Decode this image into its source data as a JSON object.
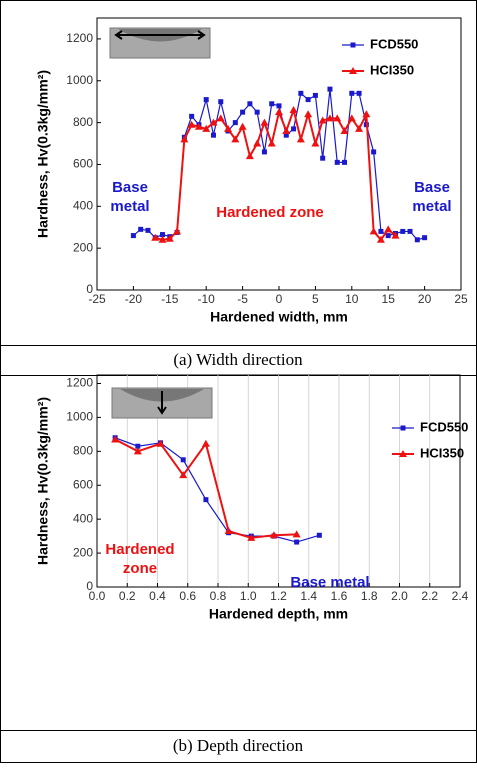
{
  "chart_data": [
    {
      "type": "line",
      "x_label": "Hardened width, mm",
      "y_label": "Hardness, Hv(0.3kg/mm²)",
      "caption": "(a)  Width  direction",
      "xlim": [
        -25,
        25
      ],
      "xticks": [
        -25,
        -20,
        -15,
        -10,
        -5,
        0,
        5,
        10,
        15,
        20,
        25
      ],
      "ylim": [
        0,
        1300
      ],
      "yticks": [
        0,
        200,
        400,
        600,
        800,
        1000,
        1200
      ],
      "grid": false,
      "legend": "upper right",
      "series": [
        {
          "name": "FCD550",
          "color": "#1a1acc",
          "marker": "square",
          "x": [
            -20,
            -19,
            -18,
            -17,
            -16,
            -15,
            -14,
            -13,
            -12,
            -11,
            -10,
            -9,
            -8,
            -7,
            -6,
            -5,
            -4,
            -3,
            -2,
            -1,
            0,
            1,
            2,
            3,
            4,
            5,
            6,
            7,
            8,
            9,
            10,
            11,
            12,
            13,
            14,
            15,
            16,
            17,
            18,
            19,
            20
          ],
          "values": [
            260,
            290,
            285,
            250,
            265,
            255,
            275,
            730,
            830,
            790,
            910,
            740,
            900,
            760,
            800,
            850,
            890,
            850,
            660,
            890,
            880,
            740,
            770,
            940,
            910,
            930,
            630,
            960,
            610,
            610,
            940,
            940,
            790,
            660,
            280,
            260,
            270,
            280,
            280,
            240,
            250
          ]
        },
        {
          "name": "HCI350",
          "color": "#ee1111",
          "marker": "triangle",
          "x": [
            -17,
            -16,
            -15,
            -14,
            -13,
            -12,
            -11,
            -10,
            -9,
            -8,
            -7,
            -6,
            -5,
            -4,
            -3,
            -2,
            -1,
            0,
            1,
            2,
            3,
            4,
            5,
            6,
            7,
            8,
            9,
            10,
            11,
            12,
            13,
            14,
            15,
            16
          ],
          "values": [
            250,
            240,
            245,
            280,
            720,
            790,
            780,
            770,
            800,
            820,
            770,
            720,
            780,
            640,
            700,
            800,
            700,
            850,
            760,
            860,
            720,
            840,
            700,
            810,
            820,
            820,
            760,
            820,
            770,
            840,
            280,
            240,
            290,
            260
          ]
        }
      ],
      "annotations": [
        {
          "text": [
            "Base",
            "metal"
          ],
          "color": "#1a1acc"
        },
        {
          "text": [
            "Hardened zone"
          ],
          "color": "#ee1111"
        },
        {
          "text": [
            "Base",
            "metal"
          ],
          "color": "#1a1acc"
        }
      ]
    },
    {
      "type": "line",
      "x_label": "Hardened depth, mm",
      "y_label": "Hardness, Hv(0.3kg/mm²)",
      "caption": "(b)  Depth  direction",
      "xlim": [
        0,
        2.4
      ],
      "xticks": [
        {
          "value": 0,
          "label": "0.0"
        },
        0.2,
        0.4,
        0.6,
        0.8,
        {
          "value": 1,
          "label": "1.0"
        },
        1.2,
        1.4,
        1.6,
        1.8,
        {
          "value": 2,
          "label": "2.0"
        },
        2.2,
        2.4
      ],
      "ylim": [
        0,
        1250
      ],
      "yticks": [
        0,
        200,
        400,
        600,
        800,
        1000,
        1200
      ],
      "grid": true,
      "legend": "upper right",
      "series": [
        {
          "name": "FCD550",
          "color": "#1a1acc",
          "marker": "square",
          "x": [
            0.12,
            0.27,
            0.42,
            0.57,
            0.72,
            0.87,
            1.02,
            1.17,
            1.32,
            1.47
          ],
          "values": [
            880,
            830,
            850,
            750,
            515,
            320,
            300,
            300,
            265,
            305
          ]
        },
        {
          "name": "HCI350",
          "color": "#ee1111",
          "marker": "triangle",
          "x": [
            0.12,
            0.27,
            0.42,
            0.57,
            0.72,
            0.87,
            1.02,
            1.17,
            1.32
          ],
          "values": [
            870,
            800,
            845,
            660,
            845,
            330,
            290,
            305,
            310
          ]
        }
      ],
      "annotations": [
        {
          "text": [
            "Hardened",
            "zone"
          ],
          "color": "#ee1111"
        },
        {
          "text": [
            "Base metal"
          ],
          "color": "#1a1acc"
        }
      ]
    }
  ]
}
